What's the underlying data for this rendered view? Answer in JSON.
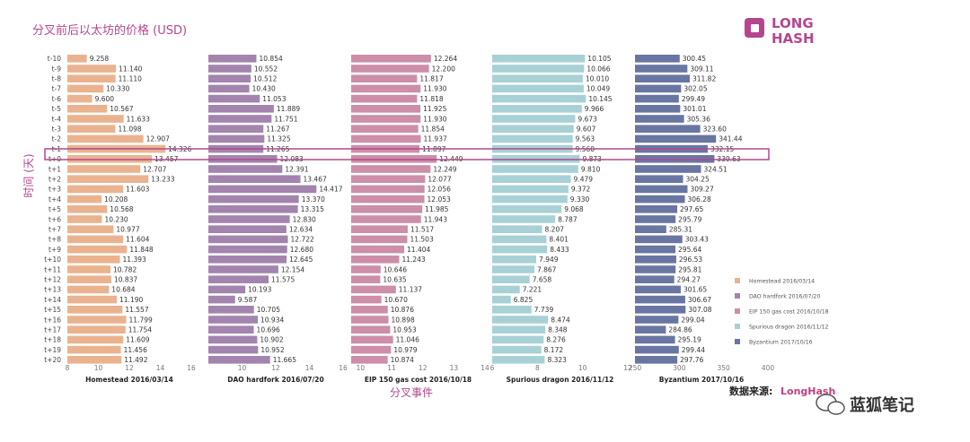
{
  "title": "分叉前后以太坊的价格 (USD)",
  "y_axis_label": "时间 (天)",
  "x_axis_label": "分叉事件",
  "source_label": "数据来源:",
  "source_link": "LongHash",
  "logo": {
    "line1": "LONG",
    "line2": "HASH"
  },
  "watermark": "蓝狐笔记",
  "colors": {
    "title": "#b5468e",
    "highlight": "#b5468e",
    "homestead": "#eab38f",
    "dao": "#a384ae",
    "eip150": "#cc8ea9",
    "spurious": "#a8d1d6",
    "byzantium": "#6a76a2"
  },
  "chart_data": {
    "type": "bar",
    "orientation": "horizontal",
    "title": "分叉前后以太坊的价格 (USD)",
    "xlabel": "分叉事件",
    "ylabel": "时间 (天)",
    "categories": [
      "t-10",
      "t-9",
      "t-8",
      "t-7",
      "t-6",
      "t-5",
      "t-4",
      "t-3",
      "t-2",
      "t-1",
      "t+0",
      "t+1",
      "t+2",
      "t+3",
      "t+4",
      "t+5",
      "t+6",
      "t+7",
      "t+8",
      "t+9",
      "t+10",
      "t+11",
      "t+12",
      "t+13",
      "t+14",
      "t+15",
      "t+16",
      "t+17",
      "t+18",
      "t+19",
      "t+20"
    ],
    "highlight_category": "t+0",
    "legend_position": "right",
    "series": [
      {
        "name": "Homestead 2016/03/14",
        "panel_title": "Homestead 2016/03/14",
        "color": "#eab38f",
        "xlim": [
          8,
          16
        ],
        "ticks": [
          "8",
          "10",
          "12",
          "14",
          "16"
        ],
        "values": [
          9.258,
          11.14,
          11.11,
          10.33,
          9.6,
          10.567,
          11.633,
          11.098,
          12.907,
          14.326,
          13.457,
          12.707,
          13.233,
          11.603,
          10.208,
          10.568,
          10.23,
          10.977,
          11.604,
          11.848,
          11.393,
          10.782,
          10.837,
          10.684,
          11.19,
          11.557,
          11.799,
          11.754,
          11.609,
          11.456,
          11.492
        ],
        "labels": [
          "9.258",
          "11.140",
          "11.110",
          "10.330",
          "9.600",
          "10.567",
          "11.633",
          "11.098",
          "12.907",
          "14.326",
          "13.457",
          "12.707",
          "13.233",
          "11.603",
          "10.208",
          "10.568",
          "10.230",
          "10.977",
          "11.604",
          "11.848",
          "11.393",
          "10.782",
          "10.837",
          "10.684",
          "11.190",
          "11.557",
          "11.799",
          "11.754",
          "11.609",
          "11.456",
          "11.492"
        ]
      },
      {
        "name": "DAO hardfork 2016/07/20",
        "panel_title": "DAO hardfork  2016/07/20",
        "color": "#a384ae",
        "xlim": [
          8,
          16
        ],
        "ticks": [
          "10",
          "12",
          "14",
          "16"
        ],
        "values": [
          10.854,
          10.552,
          10.512,
          10.43,
          11.053,
          11.889,
          11.751,
          11.267,
          11.325,
          11.265,
          12.083,
          12.391,
          13.467,
          14.417,
          13.37,
          13.315,
          12.83,
          12.634,
          12.722,
          12.68,
          12.645,
          12.154,
          11.575,
          10.193,
          9.587,
          10.705,
          10.934,
          10.696,
          10.902,
          10.952,
          11.665
        ],
        "labels": [
          "10.854",
          "10.552",
          "10.512",
          "10.430",
          "11.053",
          "11.889",
          "11.751",
          "11.267",
          "11.325",
          "11.265",
          "12.083",
          "12.391",
          "13.467",
          "14.417",
          "13.370",
          "13.315",
          "12.830",
          "12.634",
          "12.722",
          "12.680",
          "12.645",
          "12.154",
          "11.575",
          "10.193",
          "9.587",
          "10.705",
          "10.934",
          "10.696",
          "10.902",
          "10.952",
          "11.665"
        ]
      },
      {
        "name": "EIP 150 gas cost 2016/10/18",
        "panel_title": "EIP 150 gas cost  2016/10/18",
        "color": "#cc8ea9",
        "xlim": [
          9.7,
          14
        ],
        "ticks": [
          "10",
          "11",
          "12",
          "13",
          "14"
        ],
        "values": [
          12.264,
          12.2,
          11.817,
          11.93,
          11.818,
          11.925,
          11.93,
          11.854,
          11.937,
          11.897,
          12.449,
          12.249,
          12.077,
          12.056,
          12.053,
          11.985,
          11.943,
          11.517,
          11.503,
          11.404,
          11.243,
          10.646,
          10.635,
          11.137,
          10.67,
          10.876,
          10.898,
          10.953,
          11.046,
          10.979,
          10.874
        ],
        "labels": [
          "12.264",
          "12.200",
          "11.817",
          "11.930",
          "11.818",
          "11.925",
          "11.930",
          "11.854",
          "11.937",
          "11.897",
          "12.449",
          "12.249",
          "12.077",
          "12.056",
          "12.053",
          "11.985",
          "11.943",
          "11.517",
          "11.503",
          "11.404",
          "11.243",
          "10.646",
          "10.635",
          "11.137",
          "10.670",
          "10.876",
          "10.898",
          "10.953",
          "11.046",
          "10.979",
          "10.874"
        ]
      },
      {
        "name": "Spurious dragon 2016/11/12",
        "panel_title": "Spurious dragon 2016/11/12",
        "color": "#a8d1d6",
        "xlim": [
          6,
          12
        ],
        "ticks": [
          "6",
          "8",
          "10",
          "12"
        ],
        "values": [
          10.105,
          10.066,
          10.01,
          10.049,
          10.145,
          9.966,
          9.673,
          9.607,
          9.563,
          9.56,
          9.873,
          9.81,
          9.479,
          9.372,
          9.33,
          9.068,
          8.787,
          8.207,
          8.401,
          8.433,
          7.949,
          7.867,
          7.658,
          7.221,
          6.825,
          7.739,
          8.474,
          8.348,
          8.276,
          8.172,
          8.323
        ],
        "labels": [
          "10.105",
          "10.066",
          "10.010",
          "10.049",
          "10.145",
          "9.966",
          "9.673",
          "9.607",
          "9.563",
          "9.560",
          "9.873",
          "9.810",
          "9.479",
          "9.372",
          "9.330",
          "9.068",
          "8.787",
          "8.207",
          "8.401",
          "8.433",
          "7.949",
          "7.867",
          "7.658",
          "7.221",
          "6.825",
          "7.739",
          "8.474",
          "8.348",
          "8.276",
          "8.172",
          "8.323"
        ]
      },
      {
        "name": "Byzantium 2017/10/16",
        "panel_title": "Byzantium    2017/10/16",
        "color": "#6a76a2",
        "xlim": [
          250,
          400
        ],
        "ticks": [
          "250",
          "300",
          "350",
          "400"
        ],
        "values": [
          300.45,
          309.11,
          311.82,
          302.05,
          299.49,
          301.01,
          305.36,
          323.6,
          341.44,
          332.15,
          339.63,
          324.51,
          304.25,
          309.27,
          306.28,
          297.65,
          295.79,
          285.31,
          303.43,
          295.64,
          296.53,
          295.81,
          294.27,
          301.65,
          306.67,
          307.08,
          299.04,
          284.86,
          295.19,
          299.44,
          297.76
        ],
        "labels": [
          "300.45",
          "309.11",
          "311.82",
          "302.05",
          "299.49",
          "301.01",
          "305.36",
          "323.60",
          "341.44",
          "332.15",
          "339.63",
          "324.51",
          "304.25",
          "309.27",
          "306.28",
          "297.65",
          "295.79",
          "285.31",
          "303.43",
          "295.64",
          "296.53",
          "295.81",
          "294.27",
          "301.65",
          "306.67",
          "307.08",
          "299.04",
          "284.86",
          "295.19",
          "299.44",
          "297.76"
        ]
      }
    ],
    "legend": [
      "Homestead 2016/03/14",
      "DAO hardfork 2016/07/20",
      "EIP 150 gas cost 2016/10/18",
      "Spurious dragon 2016/11/12",
      "Byzantium 2017/10/16"
    ]
  }
}
